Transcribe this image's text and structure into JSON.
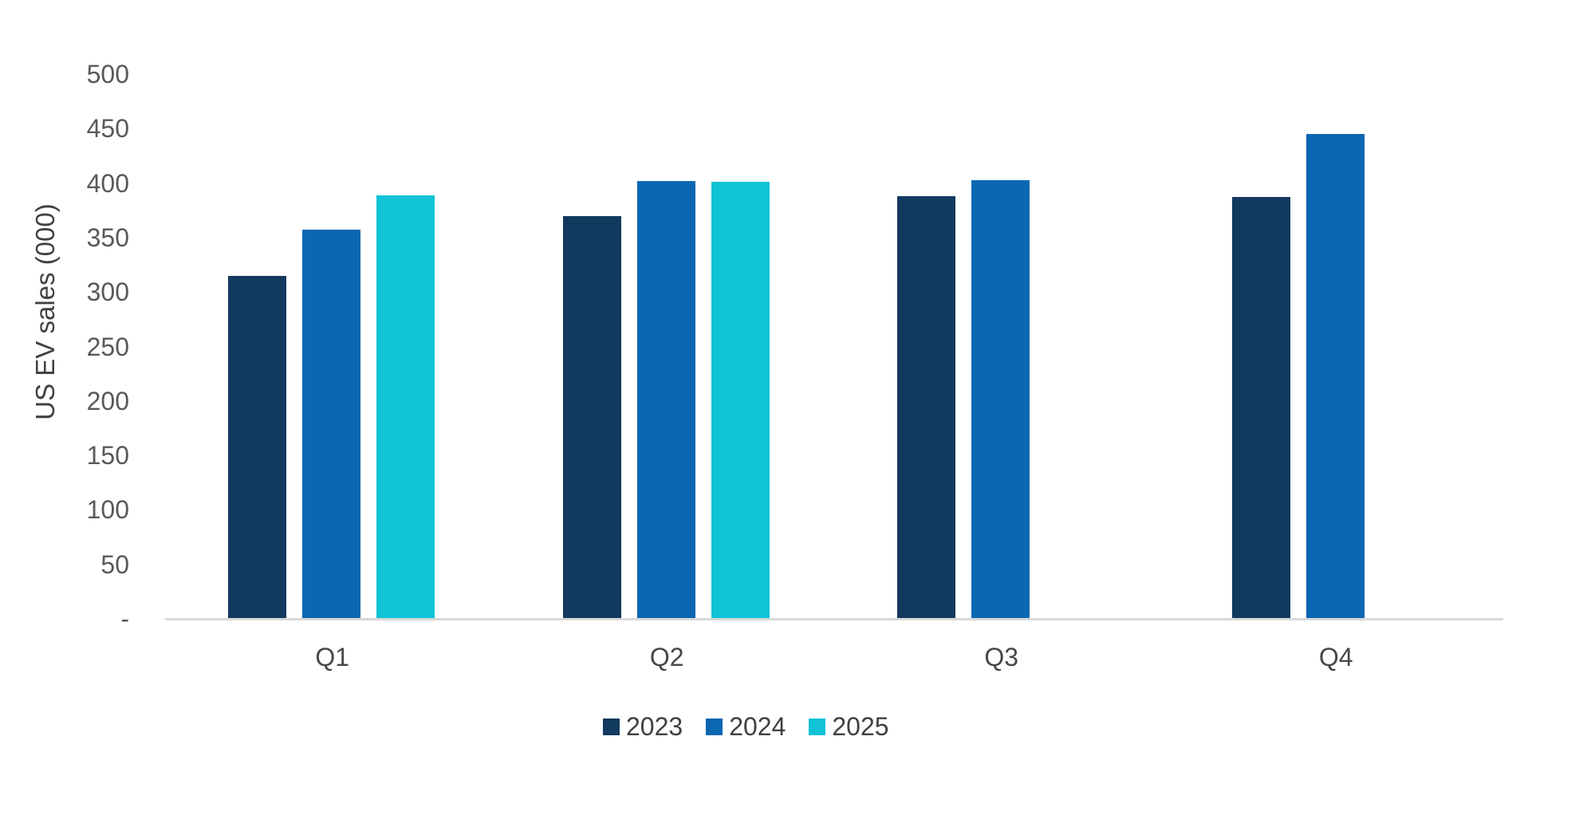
{
  "chart_data": {
    "type": "bar",
    "title": "",
    "xlabel": "",
    "ylabel": "US EV sales (000)",
    "categories": [
      "Q1",
      "Q2",
      "Q3",
      "Q4"
    ],
    "series": [
      {
        "name": "2023",
        "color": "#12395E",
        "values": [
          315,
          370,
          388,
          387
        ]
      },
      {
        "name": "2024",
        "color": "#0B67B2",
        "values": [
          357,
          402,
          403,
          445
        ]
      },
      {
        "name": "2025",
        "color": "#10C3D6",
        "values": [
          389,
          401,
          null,
          null
        ]
      }
    ],
    "ylim": [
      0,
      500
    ],
    "ytick_step": 50,
    "ytick_labels": [
      "-",
      "50",
      "100",
      "150",
      "200",
      "250",
      "300",
      "350",
      "400",
      "450",
      "500"
    ],
    "grid": false,
    "legend_position": "bottom"
  },
  "colors": {
    "background": "#FFFFFF",
    "axis_line": "#D8D8D8",
    "ytick_text": "#595959",
    "xtick_text": "#474747",
    "ylabel_text": "#414141",
    "legend_text": "#404040"
  }
}
